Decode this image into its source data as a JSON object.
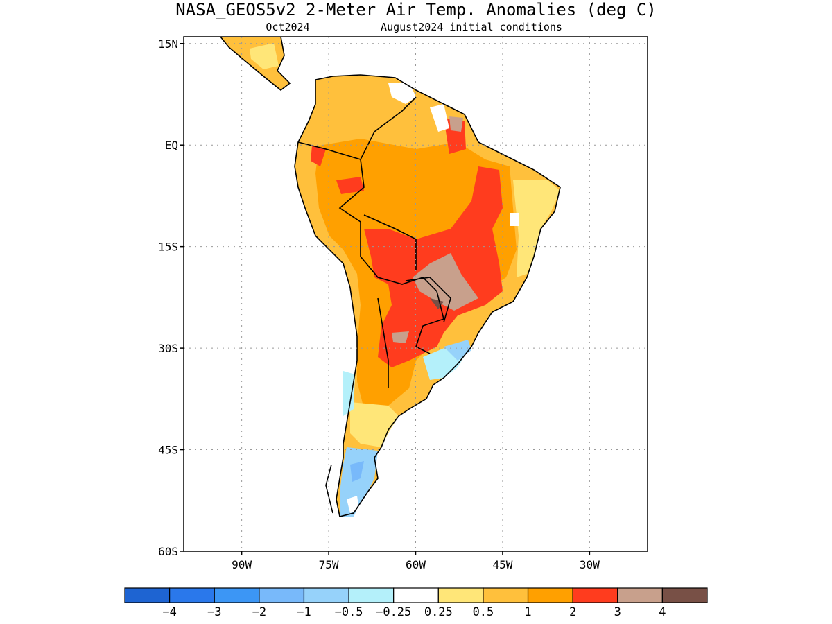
{
  "title": "NASA_GEOS5v2 2-Meter Air Temp. Anomalies (deg C)",
  "subtitle_left": "Oct2024",
  "subtitle_right": "August2024 initial conditions",
  "lat_ticks": [
    {
      "value": 15,
      "label": "15N"
    },
    {
      "value": 0,
      "label": "EQ"
    },
    {
      "value": -15,
      "label": "15S"
    },
    {
      "value": -30,
      "label": "30S"
    },
    {
      "value": -45,
      "label": "45S"
    },
    {
      "value": -60,
      "label": "60S"
    }
  ],
  "lon_ticks": [
    {
      "value": -90,
      "label": "90W"
    },
    {
      "value": -75,
      "label": "75W"
    },
    {
      "value": -60,
      "label": "60W"
    },
    {
      "value": -45,
      "label": "45W"
    },
    {
      "value": -30,
      "label": "30W"
    }
  ],
  "map_extent": {
    "lon_min": -100,
    "lon_max": -20,
    "lat_min": -60,
    "lat_max": 16
  },
  "grid": true,
  "colorbar": {
    "colors": [
      "#1e64d2",
      "#2a78eb",
      "#3c96f5",
      "#78b9fa",
      "#96d2fa",
      "#b4f0fa",
      "#ffffff",
      "#ffe678",
      "#ffc03c",
      "#ffa000",
      "#ff3c1e",
      "#c8a08c",
      "#785046"
    ],
    "labels": [
      "−4",
      "−3",
      "−2",
      "−1",
      "−0.5",
      "−0.25",
      "0.25",
      "0.5",
      "1",
      "2",
      "3",
      "4"
    ]
  },
  "chart_data": {
    "type": "heatmap",
    "title": "NASA_GEOS5v2 2-Meter Air Temp. Anomalies (deg C)",
    "variable": "2-Meter Air Temperature Anomaly",
    "units": "deg C",
    "forecast_month": "Oct2024",
    "initial_conditions": "August2024 initial conditions",
    "region": "South America",
    "levels": [
      -4,
      -3,
      -2,
      -1,
      -0.5,
      -0.25,
      0.25,
      0.5,
      1,
      2,
      3,
      4
    ],
    "anomaly_regions": [
      {
        "region": "Northern South America / Amazon",
        "category": "1 to 2"
      },
      {
        "region": "Central Brazil / Bolivia / Paraguay",
        "category": "2 to 3"
      },
      {
        "region": "Southern Brazil / Paraguay border",
        "category": "3 to 4"
      },
      {
        "region": "Northern Argentina",
        "category": "2 to 3"
      },
      {
        "region": "Central Argentina",
        "category": "1 to 2"
      },
      {
        "region": "Southern Argentina",
        "category": "0.5 to 1"
      },
      {
        "region": "Patagonia",
        "category": "-1 to -0.25"
      },
      {
        "region": "Northeast Brazil coast",
        "category": "0.5 to 1"
      },
      {
        "region": "Central America",
        "category": "0.5 to 1"
      },
      {
        "region": "Uruguay / Rio Grande do Sul",
        "category": "-0.5 to 0.25"
      }
    ]
  }
}
